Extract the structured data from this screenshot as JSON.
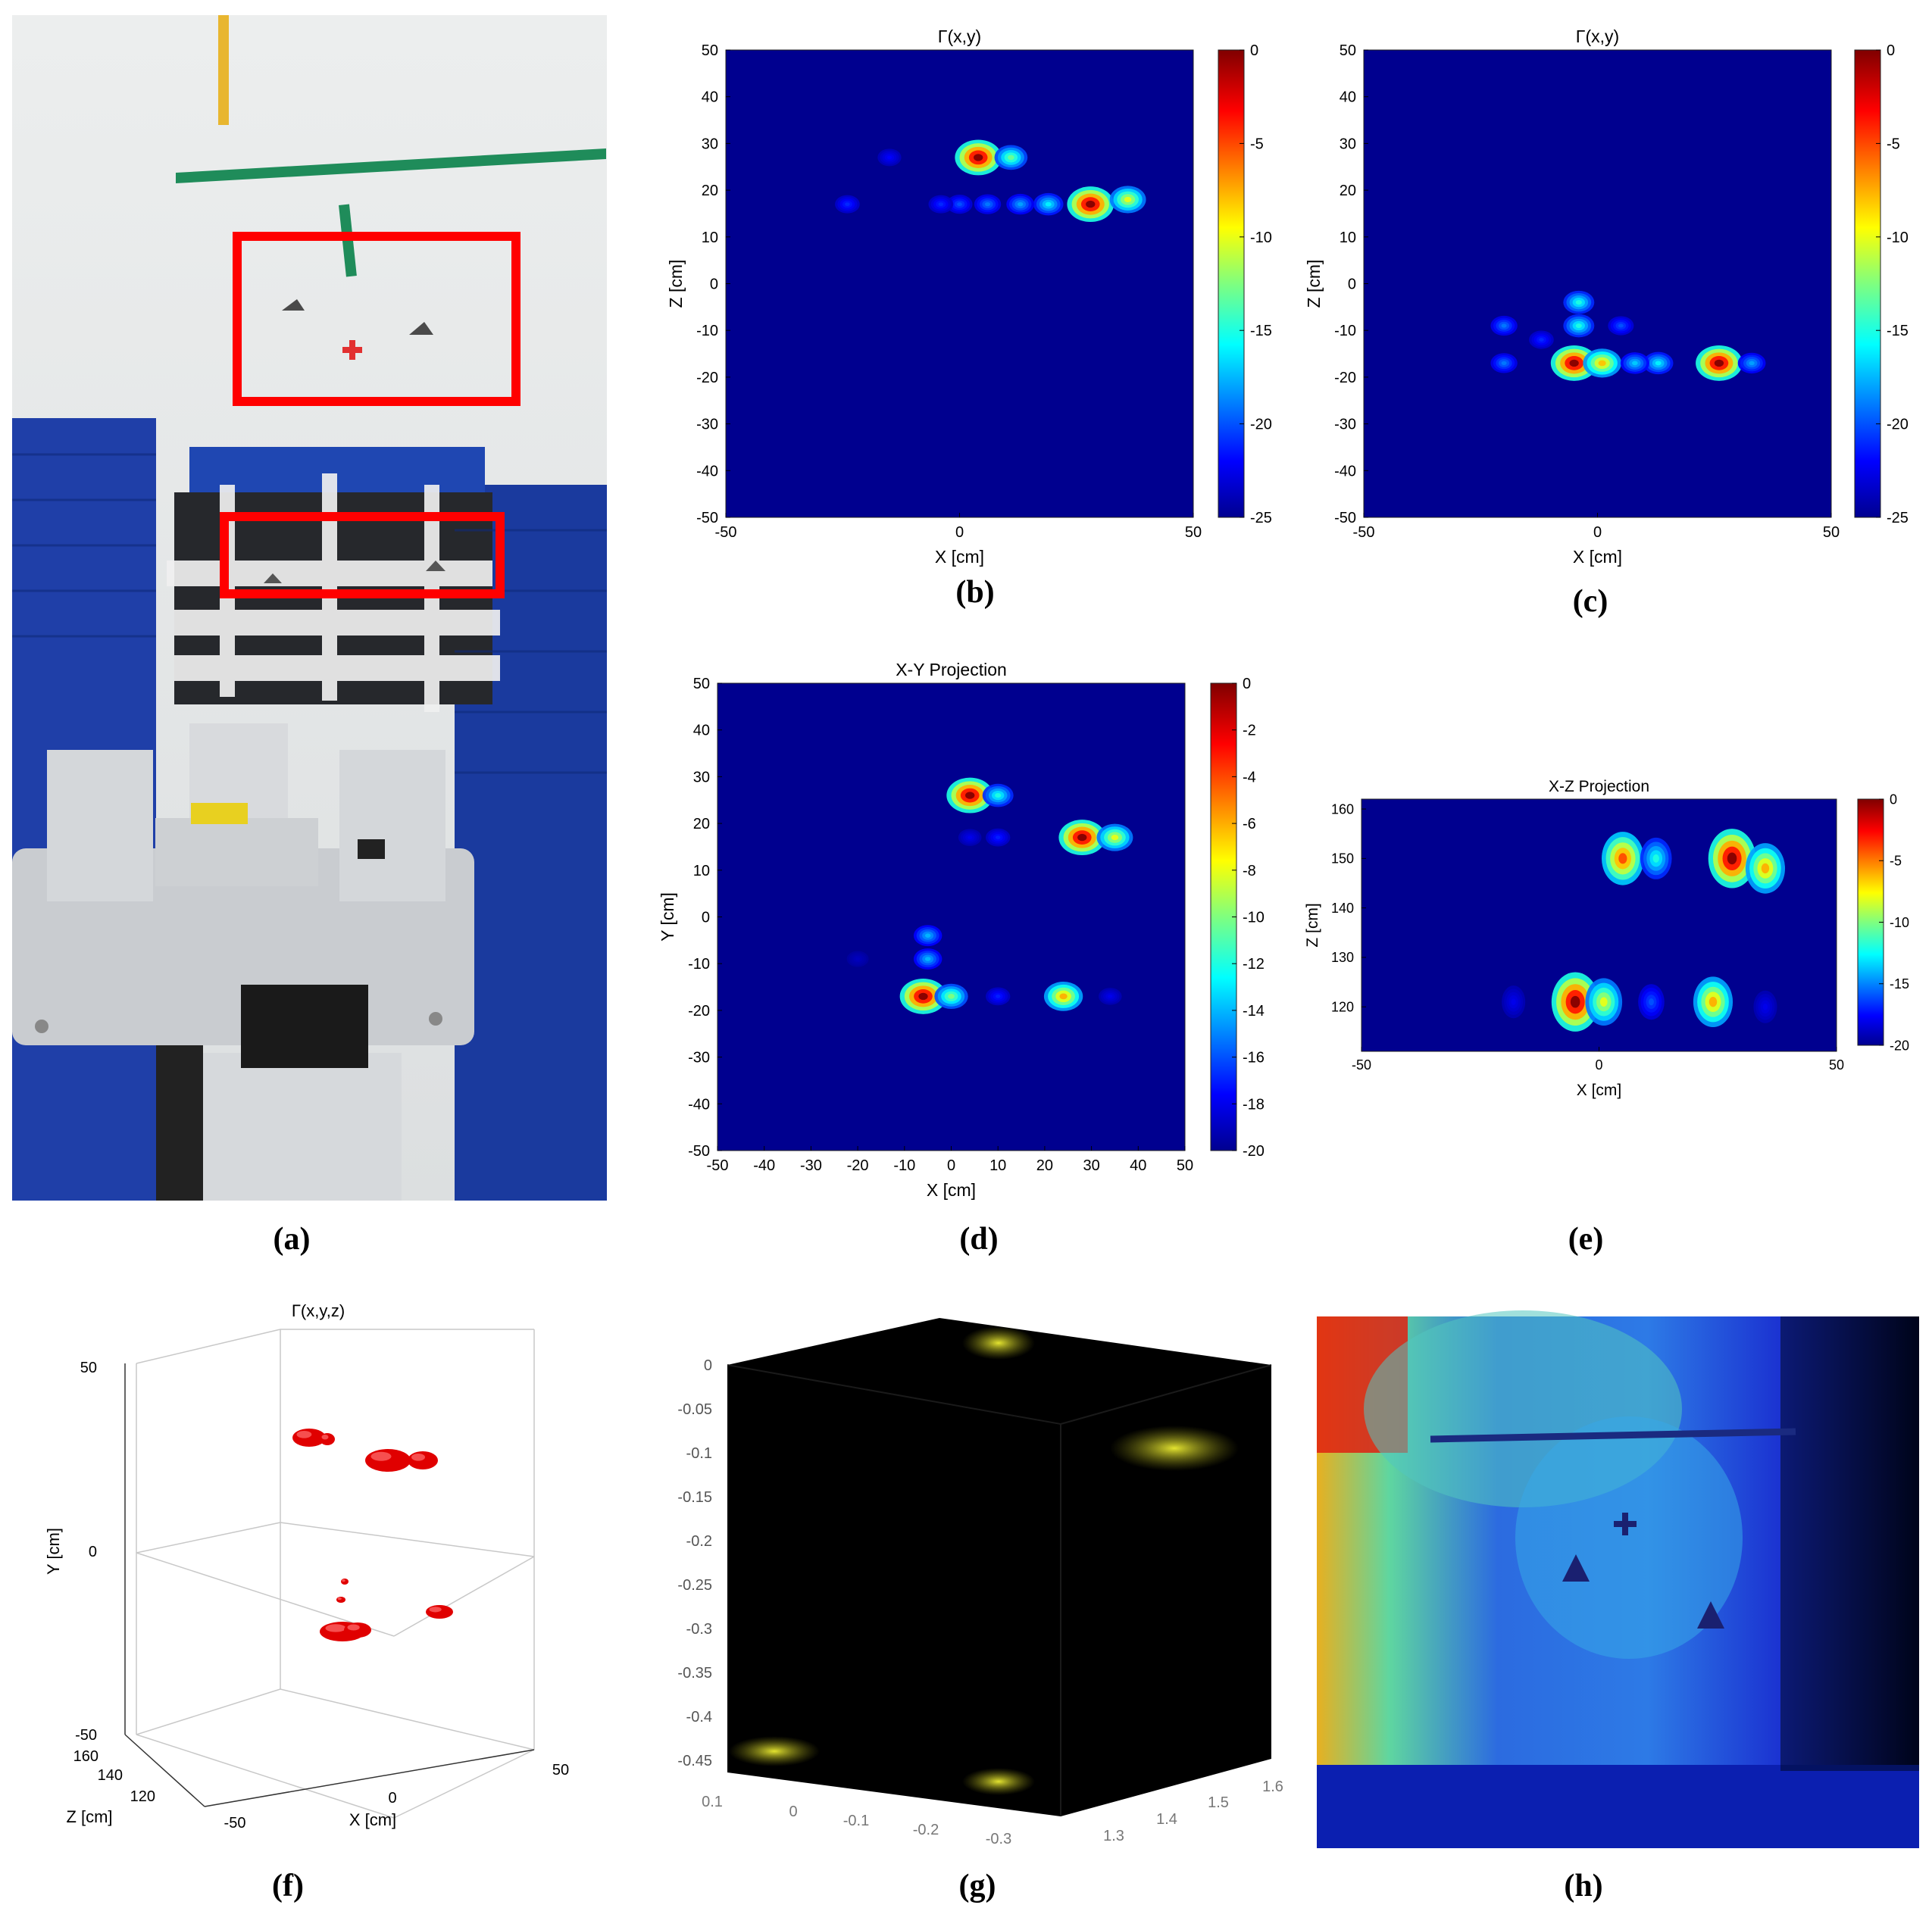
{
  "panels": {
    "a": {
      "caption": "(a)"
    },
    "b": {
      "caption": "(b)"
    },
    "c": {
      "caption": "(c)"
    },
    "d": {
      "caption": "(d)"
    },
    "e": {
      "caption": "(e)"
    },
    "f": {
      "caption": "(f)"
    },
    "g": {
      "caption": "(g)"
    },
    "h": {
      "caption": "(h)"
    }
  },
  "colors": {
    "background": "#00008f",
    "hot": "#b00000",
    "marker": "#ff0000",
    "iso": "#e00000",
    "points": "#d8d820"
  },
  "chart_data": [
    {
      "panel": "b",
      "type": "heatmap",
      "title": "Γ(x,y)",
      "xlabel": "X [cm]",
      "ylabel": "Z [cm]",
      "xlim": [
        -50,
        50
      ],
      "ylim": [
        -50,
        50
      ],
      "xticks": [
        -50,
        0,
        50
      ],
      "yticks": [
        50,
        40,
        30,
        20,
        10,
        0,
        -10,
        -20,
        -30,
        -40,
        -50
      ],
      "colorbar": {
        "range": [
          -25,
          0
        ],
        "ticks": [
          0,
          -5,
          -10,
          -15,
          -20,
          -25
        ]
      },
      "blobs": [
        {
          "x": 4,
          "y": 27,
          "peak": 0
        },
        {
          "x": 11,
          "y": 27,
          "peak": -13
        },
        {
          "x": 28,
          "y": 17,
          "peak": 0
        },
        {
          "x": 36,
          "y": 18,
          "peak": -10
        },
        {
          "x": 19,
          "y": 17,
          "peak": -16
        },
        {
          "x": 13,
          "y": 17,
          "peak": -18
        },
        {
          "x": 6,
          "y": 17,
          "peak": -19
        },
        {
          "x": 0,
          "y": 17,
          "peak": -20
        },
        {
          "x": -4,
          "y": 17,
          "peak": -21
        },
        {
          "x": -24,
          "y": 17,
          "peak": -21
        },
        {
          "x": -15,
          "y": 27,
          "peak": -22
        }
      ]
    },
    {
      "panel": "c",
      "type": "heatmap",
      "title": "Γ(x,y)",
      "xlabel": "X [cm]",
      "ylabel": "Z [cm]",
      "xlim": [
        -50,
        50
      ],
      "ylim": [
        -50,
        50
      ],
      "xticks": [
        -50,
        0,
        50
      ],
      "yticks": [
        50,
        40,
        30,
        20,
        10,
        0,
        -10,
        -20,
        -30,
        -40,
        -50
      ],
      "colorbar": {
        "range": [
          -25,
          0
        ],
        "ticks": [
          0,
          -5,
          -10,
          -15,
          -20,
          -25
        ]
      },
      "blobs": [
        {
          "x": -5,
          "y": -17,
          "peak": 0
        },
        {
          "x": 1,
          "y": -17,
          "peak": -8
        },
        {
          "x": 26,
          "y": -17,
          "peak": 0
        },
        {
          "x": 13,
          "y": -17,
          "peak": -16
        },
        {
          "x": 8,
          "y": -17,
          "peak": -17
        },
        {
          "x": 33,
          "y": -17,
          "peak": -18
        },
        {
          "x": -20,
          "y": -17,
          "peak": -19
        },
        {
          "x": -4,
          "y": -4,
          "peak": -15
        },
        {
          "x": -4,
          "y": -9,
          "peak": -15
        },
        {
          "x": -20,
          "y": -9,
          "peak": -19
        },
        {
          "x": 5,
          "y": -9,
          "peak": -20
        },
        {
          "x": -12,
          "y": -12,
          "peak": -21
        }
      ]
    },
    {
      "panel": "d",
      "type": "heatmap",
      "title": "X-Y Projection",
      "xlabel": "X [cm]",
      "ylabel": "Y [cm]",
      "xlim": [
        -50,
        50
      ],
      "ylim": [
        -50,
        50
      ],
      "xticks": [
        -50,
        -40,
        -30,
        -20,
        -10,
        0,
        10,
        20,
        30,
        40,
        50
      ],
      "yticks": [
        50,
        40,
        30,
        20,
        10,
        0,
        -10,
        -20,
        -30,
        -40,
        -50
      ],
      "colorbar": {
        "range": [
          -20,
          0
        ],
        "ticks": [
          0,
          -2,
          -4,
          -6,
          -8,
          -10,
          -12,
          -14,
          -16,
          -18,
          -20
        ]
      },
      "blobs": [
        {
          "x": 4,
          "y": 26,
          "peak": 0
        },
        {
          "x": 10,
          "y": 26,
          "peak": -12
        },
        {
          "x": 28,
          "y": 17,
          "peak": 0
        },
        {
          "x": 35,
          "y": 17,
          "peak": -8
        },
        {
          "x": 10,
          "y": 17,
          "peak": -17
        },
        {
          "x": 4,
          "y": 17,
          "peak": -18
        },
        {
          "x": -6,
          "y": -17,
          "peak": 0
        },
        {
          "x": 0,
          "y": -17,
          "peak": -10
        },
        {
          "x": 24,
          "y": -17,
          "peak": -6
        },
        {
          "x": 10,
          "y": -17,
          "peak": -17
        },
        {
          "x": 34,
          "y": -17,
          "peak": -18
        },
        {
          "x": -5,
          "y": -4,
          "peak": -14
        },
        {
          "x": -5,
          "y": -9,
          "peak": -14
        },
        {
          "x": -20,
          "y": -9,
          "peak": -19
        }
      ]
    },
    {
      "panel": "e",
      "type": "heatmap",
      "title": "X-Z Projection",
      "xlabel": "X [cm]",
      "ylabel": "Z [cm]",
      "xlim": [
        -50,
        50
      ],
      "ylim": [
        111,
        162
      ],
      "xticks": [
        -50,
        0,
        50
      ],
      "yticks": [
        160,
        150,
        140,
        130,
        120
      ],
      "colorbar": {
        "range": [
          -20,
          0
        ],
        "ticks": [
          0,
          -5,
          -10,
          -15,
          -20
        ]
      },
      "blobs": [
        {
          "x": 5,
          "y": 150,
          "peak": -4
        },
        {
          "x": 12,
          "y": 150,
          "peak": -12
        },
        {
          "x": 28,
          "y": 150,
          "peak": 0
        },
        {
          "x": 35,
          "y": 148,
          "peak": -6
        },
        {
          "x": -5,
          "y": 121,
          "peak": 0
        },
        {
          "x": 1,
          "y": 121,
          "peak": -8
        },
        {
          "x": 24,
          "y": 121,
          "peak": -6
        },
        {
          "x": 11,
          "y": 121,
          "peak": -16
        },
        {
          "x": -18,
          "y": 121,
          "peak": -18
        },
        {
          "x": 35,
          "y": 120,
          "peak": -18
        }
      ]
    },
    {
      "panel": "f",
      "type": "scatter",
      "title": "Γ(x,y,z)",
      "xlabel": "X [cm]",
      "ylabel": "Y [cm]",
      "zlabel": "Z [cm]",
      "xticks": [
        -50,
        0,
        50
      ],
      "yticks": [
        50,
        0,
        -50
      ],
      "zticks": [
        160,
        140,
        120
      ]
    },
    {
      "panel": "g",
      "type": "scatter",
      "yticks": [
        "0",
        "-0.05",
        "-0.1",
        "-0.15",
        "-0.2",
        "-0.25",
        "-0.3",
        "-0.35",
        "-0.4",
        "-0.45"
      ],
      "xticks": [
        "0.1",
        "0",
        "-0.1",
        "-0.2",
        "-0.3"
      ],
      "zticks": [
        "1.3",
        "1.4",
        "1.5",
        "1.6"
      ]
    }
  ]
}
